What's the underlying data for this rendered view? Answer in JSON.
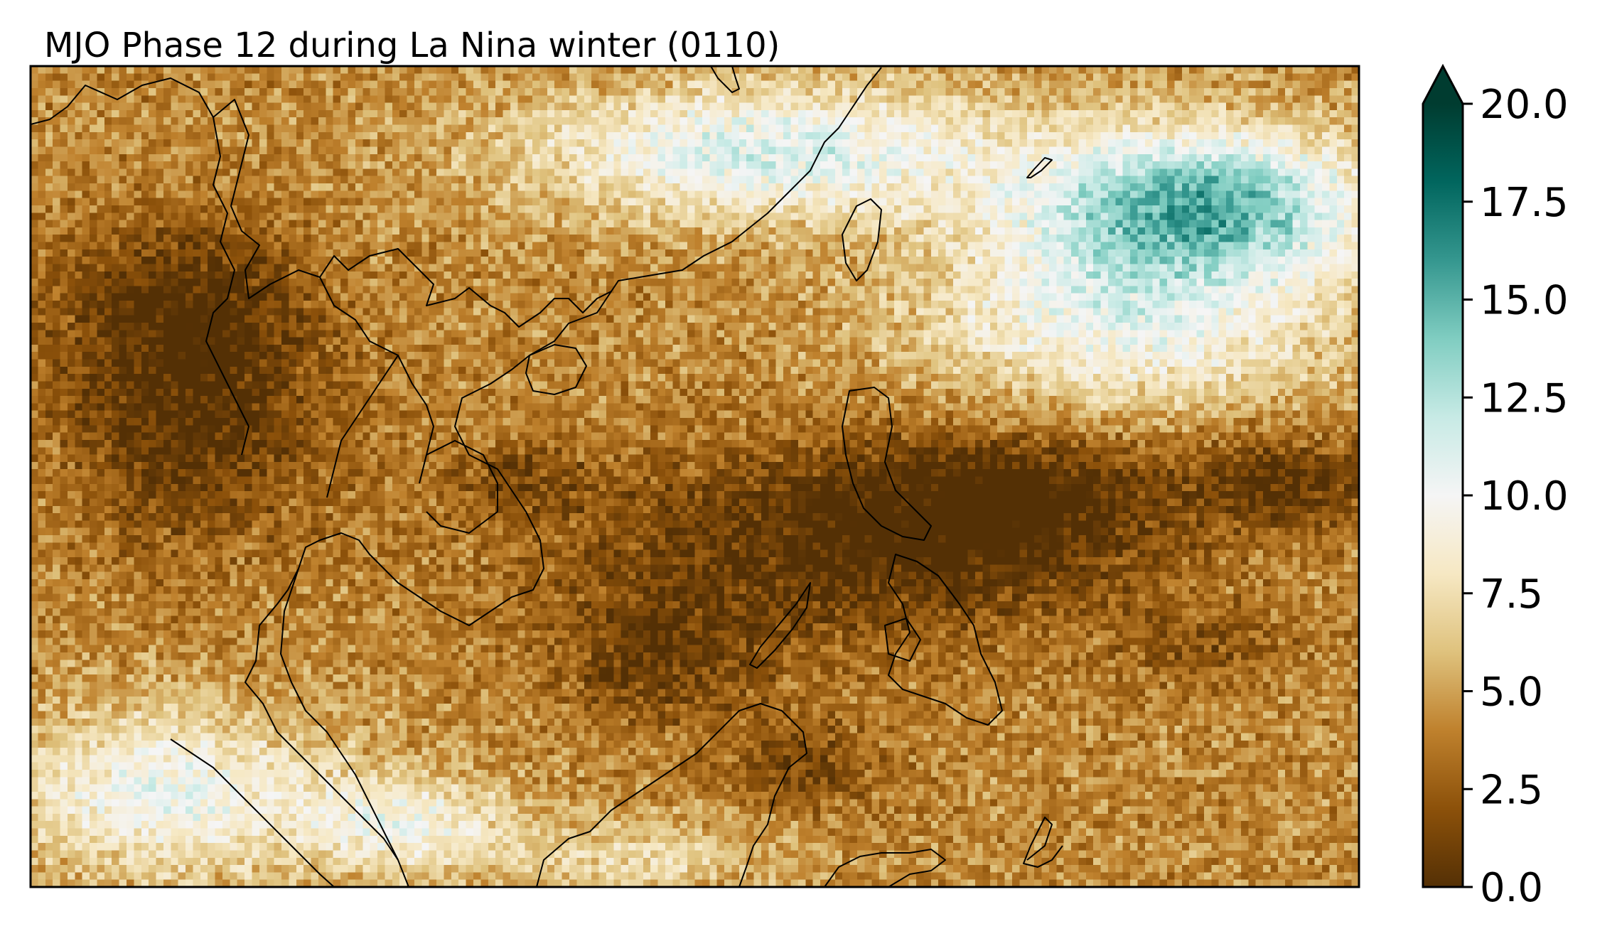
{
  "figure": {
    "title": "MJO Phase 12 during La Nina winter  (0110)"
  },
  "colorbar": {
    "colormap": "BrBG",
    "min": 0.0,
    "max": 20.0,
    "extend": "max",
    "ticks": [
      "0.0",
      "2.5",
      "5.0",
      "7.5",
      "10.0",
      "12.5",
      "15.0",
      "17.5",
      "20.0"
    ],
    "colors": [
      "#543005",
      "#8c510a",
      "#bf812d",
      "#dfc27d",
      "#f6e8c3",
      "#f5f5f5",
      "#c7eae5",
      "#80cdc1",
      "#35978f",
      "#01665e",
      "#003c30"
    ]
  },
  "map": {
    "region": "Southeast Asia",
    "coastlines": true,
    "field_grid": {
      "cols": 180,
      "rows": 112
    },
    "pattern": {
      "dry_regions": [
        "Myanmar",
        "Thailand",
        "South China Sea",
        "Philippines",
        "Western Pacific near 10N"
      ],
      "wet_regions": [
        "Southern China",
        "East China Sea",
        "Northwest Pacific",
        "Malay Peninsula",
        "Sumatra"
      ]
    }
  }
}
